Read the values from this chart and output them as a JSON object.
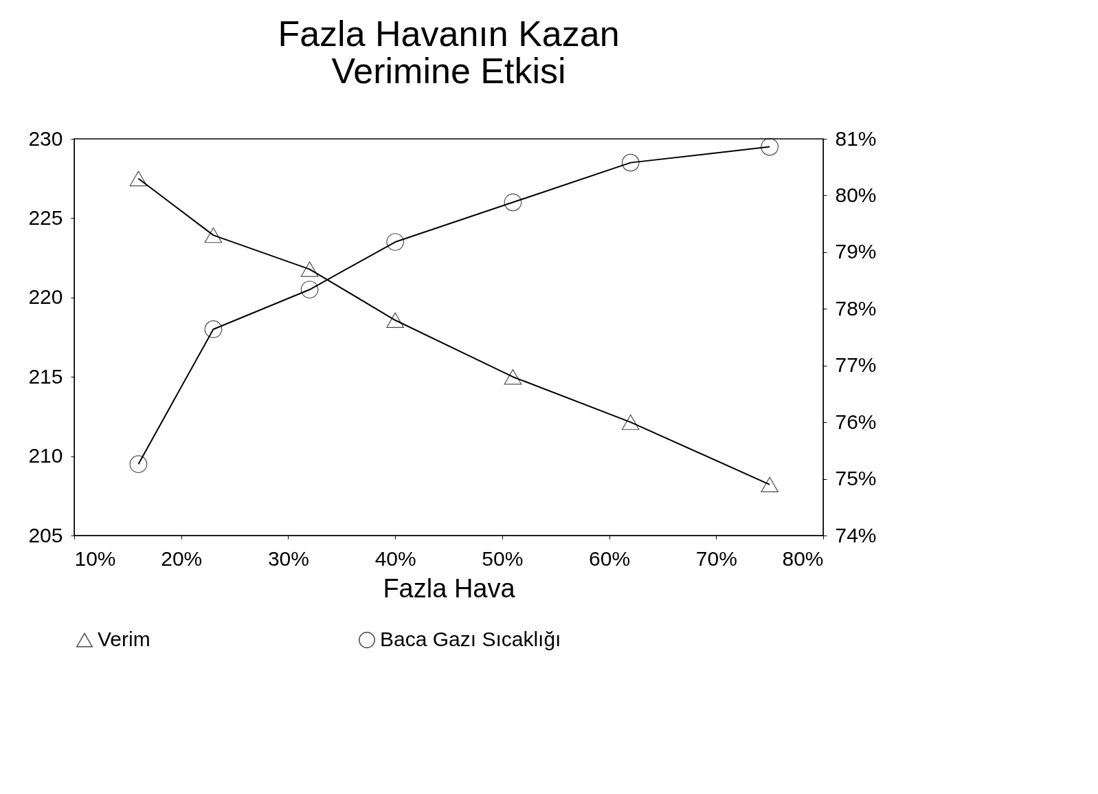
{
  "chart_data": {
    "type": "line",
    "title": "Fazla Havanın Kazan\nVerimine Etkisi",
    "xlabel": "Fazla Hava",
    "x": [
      16,
      23,
      32,
      40,
      51,
      62,
      75
    ],
    "xlim": [
      10,
      80
    ],
    "xticks": [
      {
        "value": 10,
        "label": "10%"
      },
      {
        "value": 20,
        "label": "20%"
      },
      {
        "value": 30,
        "label": "30%"
      },
      {
        "value": 40,
        "label": "40%"
      },
      {
        "value": 50,
        "label": "50%"
      },
      {
        "value": 60,
        "label": "60%"
      },
      {
        "value": 70,
        "label": "70%"
      },
      {
        "value": 80,
        "label": "80%"
      }
    ],
    "ylim": [
      205,
      230
    ],
    "yticks": [
      205,
      210,
      215,
      220,
      225,
      230
    ],
    "y2lim": [
      74,
      81
    ],
    "y2ticks": [
      {
        "value": 74,
        "label": "74%"
      },
      {
        "value": 75,
        "label": "75%"
      },
      {
        "value": 76,
        "label": "76%"
      },
      {
        "value": 77,
        "label": "77%"
      },
      {
        "value": 78,
        "label": "78%"
      },
      {
        "value": 79,
        "label": "79%"
      },
      {
        "value": 80,
        "label": "80%"
      },
      {
        "value": 81,
        "label": "81%"
      }
    ],
    "series": [
      {
        "name": "Verim",
        "color": "#000000",
        "axis": "y2",
        "marker": "triangle",
        "values": [
          80.3,
          79.3,
          78.7,
          77.8,
          76.8,
          76.0,
          74.9
        ]
      },
      {
        "name": "Baca Gazı Sıcaklığı",
        "color": "#000000",
        "marker": "circle",
        "values": [
          209.5,
          218.0,
          220.5,
          223.5,
          226.0,
          228.5,
          229.5
        ]
      }
    ],
    "legend": "bottom",
    "grid": false
  }
}
